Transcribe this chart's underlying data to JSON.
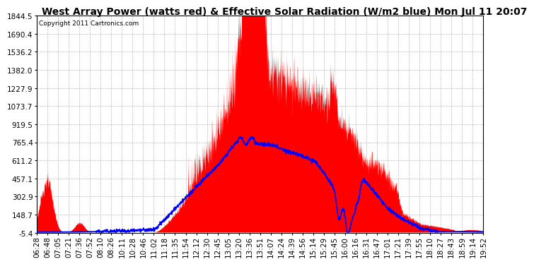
{
  "title": "West Array Power (watts red) & Effective Solar Radiation (W/m2 blue) Mon Jul 11 20:07",
  "copyright": "Copyright 2011 Cartronics.com",
  "ylim": [
    -5.4,
    1844.5
  ],
  "yticks": [
    1844.5,
    1690.4,
    1536.2,
    1382.0,
    1227.9,
    1073.7,
    919.5,
    765.4,
    611.2,
    457.1,
    302.9,
    148.7,
    -5.4
  ],
  "xtick_labels": [
    "06:28",
    "06:48",
    "07:05",
    "07:21",
    "07:36",
    "07:52",
    "08:10",
    "08:26",
    "10:11",
    "10:28",
    "10:46",
    "11:02",
    "11:18",
    "11:35",
    "11:54",
    "12:12",
    "12:30",
    "12:45",
    "13:05",
    "13:20",
    "13:36",
    "13:51",
    "14:07",
    "14:24",
    "14:39",
    "14:56",
    "15:14",
    "15:29",
    "15:45",
    "16:00",
    "16:16",
    "16:31",
    "16:47",
    "17:01",
    "17:21",
    "17:39",
    "17:55",
    "18:10",
    "18:27",
    "18:43",
    "18:59",
    "19:14",
    "19:52"
  ],
  "background_color": "#ffffff",
  "plot_bg_color": "#ffffff",
  "grid_color": "#bbbbbb",
  "red_fill_color": "#ff0000",
  "blue_line_color": "#0000ff",
  "title_fontsize": 10,
  "tick_fontsize": 7.5
}
